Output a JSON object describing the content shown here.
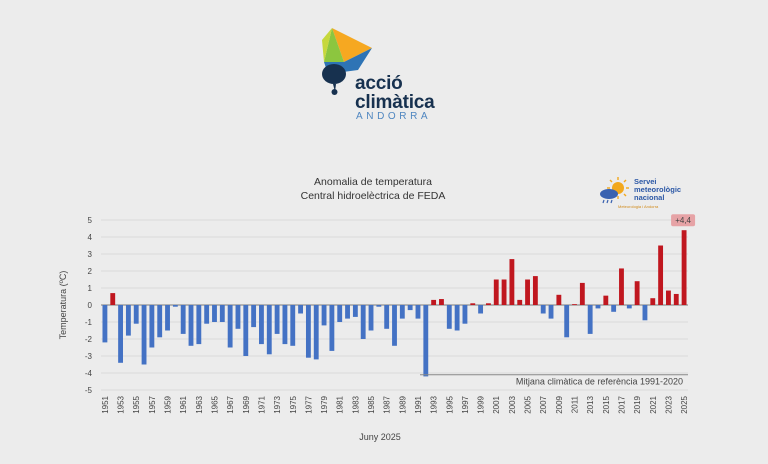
{
  "logo": {
    "line1": "acció",
    "line2": "climàtica",
    "sub": "ANDORRA",
    "colors": [
      "#f6a821",
      "#8cc63f",
      "#2e74b5",
      "#17314f"
    ]
  },
  "smn_logo": {
    "line1": "Servei",
    "line2": "meteorològic",
    "line3": "nacional",
    "tagline": "Meteorologia i Andorra"
  },
  "chart_data": {
    "type": "bar",
    "title": "Anomalia de temperatura",
    "subtitle": "Central hidroelèctrica de FEDA",
    "ylabel": "Temperatura (ºC)",
    "xlabel": "Juny 2025",
    "ylim": [
      -5,
      5
    ],
    "yticks": [
      -5,
      -4,
      -3,
      -2,
      -1,
      0,
      1,
      2,
      3,
      4,
      5
    ],
    "reference_label": "Mitjana climàtica de referència 1991-2020",
    "highlight_label": "+4,4",
    "colors": {
      "positive": "#c0171f",
      "negative": "#4472c4",
      "badge": "#e6a3a6"
    },
    "x": [
      1951,
      1952,
      1953,
      1954,
      1955,
      1956,
      1957,
      1958,
      1959,
      1960,
      1961,
      1962,
      1963,
      1964,
      1965,
      1966,
      1967,
      1968,
      1969,
      1970,
      1971,
      1972,
      1973,
      1974,
      1975,
      1976,
      1977,
      1978,
      1979,
      1980,
      1981,
      1982,
      1983,
      1984,
      1985,
      1986,
      1987,
      1988,
      1989,
      1990,
      1991,
      1992,
      1993,
      1994,
      1995,
      1996,
      1997,
      1998,
      1999,
      2000,
      2001,
      2002,
      2003,
      2004,
      2005,
      2006,
      2007,
      2008,
      2009,
      2010,
      2011,
      2012,
      2013,
      2014,
      2015,
      2016,
      2017,
      2018,
      2019,
      2020,
      2021,
      2022,
      2023,
      2024,
      2025
    ],
    "xtick_labels": [
      "1951",
      "1953",
      "1955",
      "1957",
      "1959",
      "1961",
      "1963",
      "1965",
      "1967",
      "1969",
      "1971",
      "1973",
      "1975",
      "1977",
      "1979",
      "1981",
      "1983",
      "1985",
      "1987",
      "1989",
      "1991",
      "1993",
      "1995",
      "1997",
      "1999",
      "2001",
      "2003",
      "2005",
      "2007",
      "2009",
      "2011",
      "2013",
      "2015",
      "2017",
      "2019",
      "2021",
      "2023",
      "2025"
    ],
    "values": [
      -2.2,
      0.7,
      -3.4,
      -1.8,
      -1.1,
      -3.5,
      -2.5,
      -1.9,
      -1.5,
      -0.1,
      -1.7,
      -2.4,
      -2.3,
      -1.1,
      -1.0,
      -1.0,
      -2.5,
      -1.4,
      -3.0,
      -1.3,
      -2.3,
      -2.9,
      -1.7,
      -2.3,
      -2.4,
      -0.5,
      -3.1,
      -3.2,
      -1.2,
      -2.7,
      -1.0,
      -0.8,
      -0.7,
      -2.0,
      -1.5,
      -0.1,
      -1.4,
      -2.4,
      -0.8,
      -0.3,
      -0.8,
      -4.2,
      0.3,
      0.35,
      -1.4,
      -1.5,
      -1.1,
      0.1,
      -0.5,
      0.1,
      1.5,
      1.5,
      2.7,
      0.3,
      1.5,
      1.7,
      -0.5,
      -0.8,
      0.6,
      -1.9,
      0.05,
      1.3,
      -1.7,
      -0.2,
      0.55,
      -0.4,
      2.15,
      -0.2,
      1.4,
      -0.9,
      0.4,
      3.5,
      0.85,
      0.65,
      4.4
    ]
  }
}
